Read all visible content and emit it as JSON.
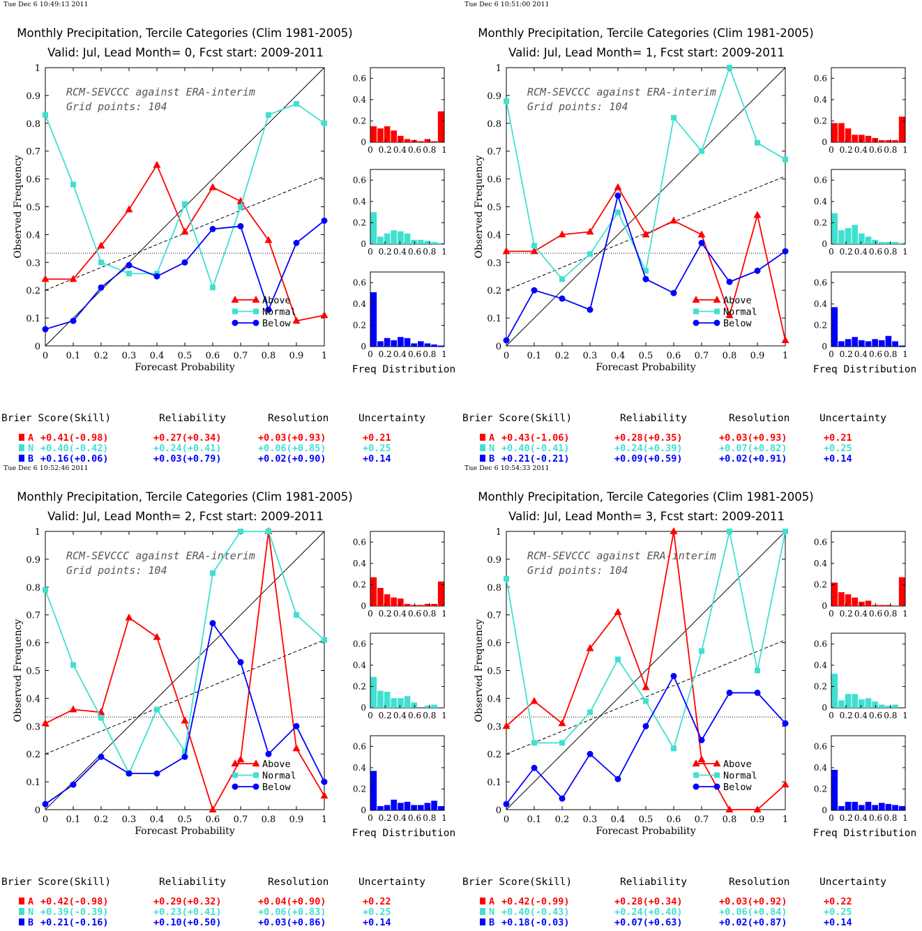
{
  "colors": {
    "above": "#ff0000",
    "normal": "#40e0d0",
    "below": "#0000ff",
    "axis": "#000000"
  },
  "labels": {
    "ylabel": "Observed Frequency",
    "xlabel": "Forecast Probability",
    "freq_label": "Freq Distribution",
    "legend": [
      "Above",
      "Normal",
      "Below"
    ],
    "annotation_line1": "RCM-SEVCCC against ERA-interim",
    "annotation_line2": "Grid points:  104",
    "score_headers": [
      "Brier Score(Skill)",
      "Reliability",
      "Resolution",
      "Uncertainty"
    ],
    "category_letters": [
      "A",
      "N",
      "B"
    ]
  },
  "chart_data": [
    {
      "type": "line",
      "timestamp": "Tue Dec  6 10:49:13 2011",
      "title": "Monthly Precipitation, Tercile Categories (Clim 1981-2005)",
      "subtitle": "Valid: Jul, Lead Month= 0, Fcst start: 2009-2011",
      "xlabel": "Forecast Probability",
      "ylabel": "Observed Frequency",
      "xlim": [
        0,
        1
      ],
      "ylim": [
        0,
        1
      ],
      "x": [
        0,
        0.1,
        0.2,
        0.3,
        0.4,
        0.5,
        0.6,
        0.7,
        0.8,
        0.9,
        1
      ],
      "series": [
        {
          "name": "Above",
          "values": [
            0.24,
            0.24,
            0.36,
            0.49,
            0.65,
            0.41,
            0.57,
            0.52,
            0.38,
            0.09,
            0.11
          ]
        },
        {
          "name": "Normal",
          "values": [
            0.83,
            0.58,
            0.3,
            0.26,
            0.26,
            0.51,
            0.21,
            0.5,
            0.83,
            0.87,
            0.8
          ]
        },
        {
          "name": "Below",
          "values": [
            0.06,
            0.09,
            0.21,
            0.29,
            0.25,
            0.3,
            0.42,
            0.43,
            0.13,
            0.37,
            0.45
          ]
        }
      ],
      "climatology": 0.333,
      "skill_line": [
        0.2,
        0.61
      ],
      "freq_distribution": {
        "x_ticks": [
          "0",
          "0.2",
          "0.4",
          "0.6",
          "0.8",
          "1"
        ],
        "y_ticks": [
          "0",
          "0.2",
          "0.4",
          "0.6"
        ],
        "ylim": [
          0,
          0.7
        ],
        "above": [
          0.15,
          0.13,
          0.15,
          0.11,
          0.06,
          0.03,
          0.02,
          0.01,
          0.03,
          0.01,
          0.29
        ],
        "normal": [
          0.3,
          0.07,
          0.1,
          0.13,
          0.12,
          0.1,
          0.04,
          0.04,
          0.03,
          0.02,
          0.01
        ],
        "below": [
          0.51,
          0.05,
          0.08,
          0.06,
          0.09,
          0.08,
          0.03,
          0.05,
          0.03,
          0.02,
          0.01
        ]
      },
      "scores": [
        {
          "letter": "A",
          "brier": "+0.41(-0.98)",
          "reliability": "+0.27(+0.34)",
          "resolution": "+0.03(+0.93)",
          "uncertainty": "+0.21"
        },
        {
          "letter": "N",
          "brier": "+0.40(-0.42)",
          "reliability": "+0.24(+0.41)",
          "resolution": "+0.06(+0.85)",
          "uncertainty": "+0.25"
        },
        {
          "letter": "B",
          "brier": "+0.16(+0.06)",
          "reliability": "+0.03(+0.79)",
          "resolution": "+0.02(+0.90)",
          "uncertainty": "+0.14"
        }
      ]
    },
    {
      "type": "line",
      "timestamp": "Tue Dec  6 10:51:00 2011",
      "title": "Monthly Precipitation, Tercile Categories (Clim 1981-2005)",
      "subtitle": "Valid: Jul, Lead Month= 1, Fcst start: 2009-2011",
      "xlabel": "Forecast Probability",
      "ylabel": "Observed Frequency",
      "xlim": [
        0,
        1
      ],
      "ylim": [
        0,
        1
      ],
      "x": [
        0,
        0.1,
        0.2,
        0.3,
        0.4,
        0.5,
        0.6,
        0.7,
        0.8,
        0.9,
        1
      ],
      "series": [
        {
          "name": "Above",
          "values": [
            0.34,
            0.34,
            0.4,
            0.41,
            0.57,
            0.4,
            0.45,
            0.4,
            0.11,
            0.47,
            0.02
          ]
        },
        {
          "name": "Normal",
          "values": [
            0.88,
            0.36,
            0.24,
            0.33,
            0.48,
            0.27,
            0.82,
            0.7,
            1.0,
            0.73,
            0.67
          ]
        },
        {
          "name": "Below",
          "values": [
            0.02,
            0.2,
            0.17,
            0.13,
            0.54,
            0.24,
            0.19,
            0.37,
            0.23,
            0.27,
            0.34
          ]
        }
      ],
      "climatology": 0.333,
      "skill_line": [
        0.2,
        0.61
      ],
      "freq_distribution": {
        "x_ticks": [
          "0",
          "0.2",
          "0.4",
          "0.6",
          "0.8",
          "1"
        ],
        "y_ticks": [
          "0",
          "0.2",
          "0.4",
          "0.6"
        ],
        "ylim": [
          0,
          0.7
        ],
        "above": [
          0.18,
          0.18,
          0.13,
          0.07,
          0.07,
          0.06,
          0.04,
          0.02,
          0.02,
          0.02,
          0.24
        ],
        "normal": [
          0.29,
          0.13,
          0.15,
          0.18,
          0.1,
          0.07,
          0.04,
          0.02,
          0.02,
          0.02,
          0.01
        ],
        "below": [
          0.37,
          0.05,
          0.07,
          0.09,
          0.06,
          0.05,
          0.07,
          0.06,
          0.1,
          0.05,
          0.01
        ]
      },
      "scores": [
        {
          "letter": "A",
          "brier": "+0.43(-1.06)",
          "reliability": "+0.28(+0.35)",
          "resolution": "+0.03(+0.93)",
          "uncertainty": "+0.21"
        },
        {
          "letter": "N",
          "brier": "+0.40(-0.41)",
          "reliability": "+0.24(+0.39)",
          "resolution": "+0.07(+0.82)",
          "uncertainty": "+0.25"
        },
        {
          "letter": "B",
          "brier": "+0.21(-0.21)",
          "reliability": "+0.09(+0.59)",
          "resolution": "+0.02(+0.91)",
          "uncertainty": "+0.14"
        }
      ]
    },
    {
      "type": "line",
      "timestamp": "Tue Dec  6 10:52:46 2011",
      "title": "Monthly Precipitation, Tercile Categories (Clim 1981-2005)",
      "subtitle": "Valid: Jul, Lead Month= 2, Fcst start: 2009-2011",
      "xlabel": "Forecast Probability",
      "ylabel": "Observed Frequency",
      "xlim": [
        0,
        1
      ],
      "ylim": [
        0,
        1
      ],
      "x": [
        0,
        0.1,
        0.2,
        0.3,
        0.4,
        0.5,
        0.6,
        0.7,
        0.8,
        0.9,
        1
      ],
      "series": [
        {
          "name": "Above",
          "values": [
            0.31,
            0.36,
            0.35,
            0.69,
            0.62,
            0.32,
            0.0,
            0.18,
            1.0,
            0.22,
            0.05
          ]
        },
        {
          "name": "Normal",
          "values": [
            0.79,
            0.52,
            0.33,
            0.13,
            0.36,
            0.21,
            0.85,
            1.0,
            1.0,
            0.7,
            0.61
          ]
        },
        {
          "name": "Below",
          "values": [
            0.02,
            0.09,
            0.19,
            0.13,
            0.13,
            0.19,
            0.67,
            0.53,
            0.2,
            0.3,
            0.1
          ]
        }
      ],
      "climatology": 0.333,
      "skill_line": [
        0.2,
        0.61
      ],
      "freq_distribution": {
        "x_ticks": [
          "0",
          "0.2",
          "0.4",
          "0.6",
          "0.8",
          "1"
        ],
        "y_ticks": [
          "0",
          "0.2",
          "0.4",
          "0.6"
        ],
        "ylim": [
          0,
          0.7
        ],
        "above": [
          0.27,
          0.17,
          0.11,
          0.08,
          0.07,
          0.02,
          0.01,
          0.01,
          0.02,
          0.02,
          0.23
        ],
        "normal": [
          0.29,
          0.16,
          0.15,
          0.09,
          0.09,
          0.11,
          0.05,
          0.0,
          0.02,
          0.03,
          0.0
        ],
        "below": [
          0.37,
          0.04,
          0.05,
          0.1,
          0.07,
          0.08,
          0.05,
          0.05,
          0.07,
          0.09,
          0.04
        ]
      },
      "scores": [
        {
          "letter": "A",
          "brier": "+0.42(-0.98)",
          "reliability": "+0.29(+0.32)",
          "resolution": "+0.04(+0.90)",
          "uncertainty": "+0.22"
        },
        {
          "letter": "N",
          "brier": "+0.39(-0.39)",
          "reliability": "+0.23(+0.41)",
          "resolution": "+0.06(+0.83)",
          "uncertainty": "+0.25"
        },
        {
          "letter": "B",
          "brier": "+0.21(-0.16)",
          "reliability": "+0.10(+0.50)",
          "resolution": "+0.03(+0.86)",
          "uncertainty": "+0.14"
        }
      ]
    },
    {
      "type": "line",
      "timestamp": "Tue Dec  6 10:54:33 2011",
      "title": "Monthly Precipitation, Tercile Categories (Clim 1981-2005)",
      "subtitle": "Valid: Jul, Lead Month= 3, Fcst start: 2009-2011",
      "xlabel": "Forecast Probability",
      "ylabel": "Observed Frequency",
      "xlim": [
        0,
        1
      ],
      "ylim": [
        0,
        1
      ],
      "x": [
        0,
        0.1,
        0.2,
        0.3,
        0.4,
        0.5,
        0.6,
        0.7,
        0.8,
        0.9,
        1
      ],
      "series": [
        {
          "name": "Above",
          "values": [
            0.3,
            0.39,
            0.31,
            0.58,
            0.71,
            0.44,
            1.0,
            0.18,
            0.0,
            0.0,
            0.09
          ]
        },
        {
          "name": "Normal",
          "values": [
            0.83,
            0.24,
            0.24,
            0.35,
            0.54,
            0.39,
            0.22,
            0.57,
            1.0,
            0.5,
            1.0
          ]
        },
        {
          "name": "Below",
          "values": [
            0.02,
            0.15,
            0.04,
            0.2,
            0.11,
            0.3,
            0.48,
            0.25,
            0.42,
            0.42,
            0.31
          ]
        }
      ],
      "climatology": 0.333,
      "skill_line": [
        0.2,
        0.61
      ],
      "freq_distribution": {
        "x_ticks": [
          "0",
          "0.2",
          "0.4",
          "0.6",
          "0.8",
          "1"
        ],
        "y_ticks": [
          "0",
          "0.2",
          "0.4",
          "0.6"
        ],
        "ylim": [
          0,
          0.7
        ],
        "above": [
          0.22,
          0.13,
          0.11,
          0.08,
          0.04,
          0.05,
          0.01,
          0.01,
          0.01,
          0.0,
          0.27
        ],
        "normal": [
          0.32,
          0.07,
          0.13,
          0.13,
          0.08,
          0.09,
          0.06,
          0.03,
          0.02,
          0.03,
          0.0
        ],
        "below": [
          0.38,
          0.04,
          0.08,
          0.08,
          0.05,
          0.08,
          0.05,
          0.07,
          0.06,
          0.05,
          0.04
        ]
      },
      "scores": [
        {
          "letter": "A",
          "brier": "+0.42(-0.99)",
          "reliability": "+0.28(+0.34)",
          "resolution": "+0.03(+0.92)",
          "uncertainty": "+0.22"
        },
        {
          "letter": "N",
          "brier": "+0.40(-0.43)",
          "reliability": "+0.24(+0.40)",
          "resolution": "+0.06(+0.84)",
          "uncertainty": "+0.25"
        },
        {
          "letter": "B",
          "brier": "+0.18(-0.03)",
          "reliability": "+0.07(+0.63)",
          "resolution": "+0.02(+0.87)",
          "uncertainty": "+0.14"
        }
      ]
    }
  ]
}
